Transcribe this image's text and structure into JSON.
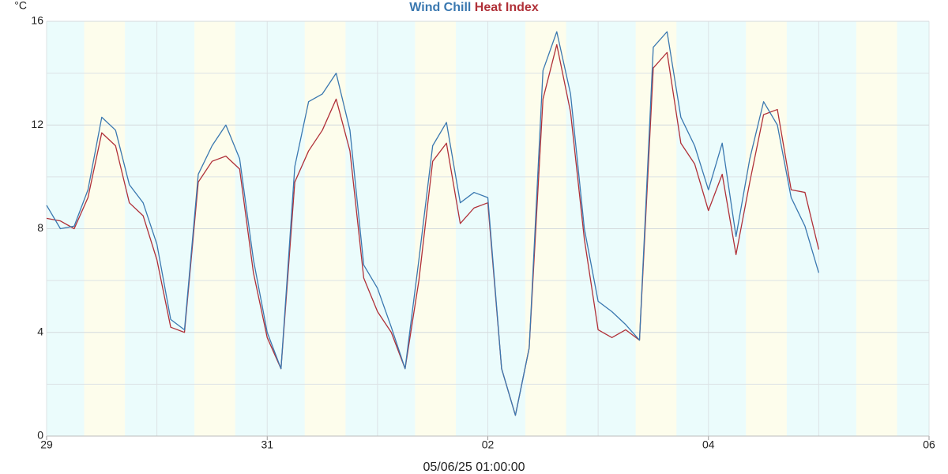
{
  "chart_data": {
    "type": "line",
    "y_label": "°C",
    "footer": "05/06/25 01:00:00",
    "x": [
      0,
      0.125,
      0.25,
      0.375,
      0.5,
      0.625,
      0.75,
      0.875,
      1,
      1.125,
      1.25,
      1.375,
      1.5,
      1.625,
      1.75,
      1.875,
      2,
      2.125,
      2.25,
      2.375,
      2.5,
      2.625,
      2.75,
      2.875,
      3,
      3.125,
      3.25,
      3.375,
      3.5,
      3.625,
      3.75,
      3.875,
      4,
      4.125,
      4.25,
      4.375,
      4.5,
      4.625,
      4.75,
      4.875,
      5,
      5.125,
      5.25,
      5.375,
      5.5,
      5.625,
      5.75,
      5.875,
      6,
      6.125,
      6.25,
      6.375,
      6.5,
      6.625,
      6.75,
      6.875,
      7
    ],
    "series": [
      {
        "name": "Wind Chill",
        "color": "#3a78b0",
        "values": [
          8.9,
          8.0,
          8.1,
          9.5,
          12.3,
          11.8,
          9.7,
          9.0,
          7.4,
          4.5,
          4.1,
          10.1,
          11.2,
          12.0,
          10.7,
          6.8,
          4.0,
          2.6,
          10.4,
          12.9,
          13.2,
          14.0,
          11.8,
          6.6,
          5.7,
          4.2,
          2.6,
          6.8,
          11.2,
          12.1,
          9.0,
          9.4,
          9.2,
          2.6,
          0.8,
          3.4,
          14.1,
          15.6,
          13.2,
          8.0,
          5.2,
          4.8,
          4.3,
          3.7,
          15.0,
          15.6,
          12.3,
          11.2,
          9.5,
          11.3,
          7.7,
          10.7,
          12.9,
          12.0,
          9.2,
          8.1,
          6.3
        ]
      },
      {
        "name": "Heat Index",
        "color": "#b03038",
        "values": [
          8.4,
          8.3,
          8.0,
          9.2,
          11.7,
          11.2,
          9.0,
          8.5,
          6.8,
          4.2,
          4.0,
          9.8,
          10.6,
          10.8,
          10.3,
          6.3,
          3.8,
          2.6,
          9.8,
          11.0,
          11.8,
          13.0,
          11.0,
          6.1,
          4.8,
          4.0,
          2.6,
          6.0,
          10.6,
          11.3,
          8.2,
          8.8,
          9.0,
          2.6,
          0.8,
          3.4,
          13.0,
          15.1,
          12.5,
          7.6,
          4.1,
          3.8,
          4.1,
          3.7,
          14.2,
          14.8,
          11.3,
          10.5,
          8.7,
          10.1,
          7.0,
          9.8,
          12.4,
          12.6,
          9.5,
          9.4,
          7.2
        ]
      }
    ],
    "xlim": [
      0,
      8
    ],
    "xticks": [
      {
        "value": 0,
        "label": "29"
      },
      {
        "value": 2,
        "label": "31"
      },
      {
        "value": 4,
        "label": "02"
      },
      {
        "value": 6,
        "label": "04"
      },
      {
        "value": 8,
        "label": "06"
      }
    ],
    "ylim": [
      0,
      16
    ],
    "yticks": [
      0,
      4,
      8,
      12,
      16
    ],
    "grid": true
  }
}
